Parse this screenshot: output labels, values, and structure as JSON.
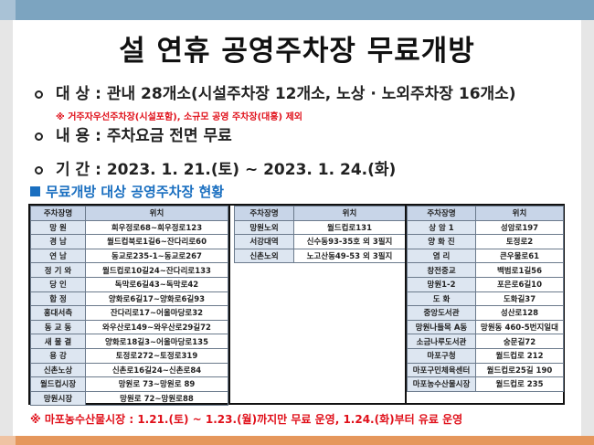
{
  "title": "설 연휴 공영주차장 무료개방",
  "bullets": [
    "대 상 : 관내 28개소(시설주차장 12개소, 노상 · 노외주차장 16개소)",
    "내 용 : 주차요금 전면 무료",
    "기 간 : 2023. 1. 21.(토) ~ 2023. 1. 24.(화)"
  ],
  "note": "※ 거주자우선주차장(시설포함), 소규모 공영 주차장(대흥) 제외",
  "section_title": "무료개방 대상 공영주차장 현황",
  "headers": [
    "주차장명",
    "위치"
  ],
  "tables": [
    [
      [
        "망 원",
        "희우정로68~희우정로123"
      ],
      [
        "경 남",
        "월드컵북로1길6~잔다리로60"
      ],
      [
        "연 남",
        "동교로235-1~동교로267"
      ],
      [
        "정 기 와",
        "월드컵로10길24~잔다리로133"
      ],
      [
        "당 인",
        "독막로6길43~독막로42"
      ],
      [
        "합 정",
        "양화로6길17~양화로6길93"
      ],
      [
        "홍대서측",
        "잔다리로17~어울마당로32"
      ],
      [
        "동 교 동",
        "와우산로149~와우산로29길72"
      ],
      [
        "새 물 결",
        "양화로18길3~어울마당로135"
      ],
      [
        "용 강",
        "토정로272~토정로319"
      ],
      [
        "신촌노상",
        "신촌로16길24~신촌로84"
      ],
      [
        "월드컵시장",
        "망원로 73~망원로 89"
      ],
      [
        "망원시장",
        "망원로 72~망원로88"
      ]
    ],
    [
      [
        "망원노외",
        "월드컵로131"
      ],
      [
        "서강대역",
        "신수동93-35호 외 3필지"
      ],
      [
        "신촌노외",
        "노고산동49-53 외 3필지"
      ]
    ],
    [
      [
        "상 암 1",
        "성암로197"
      ],
      [
        "양 화 진",
        "토정로2"
      ],
      [
        "염 리",
        "큰우물로61"
      ],
      [
        "창전중교",
        "백범로1길56"
      ],
      [
        "망원1-2",
        "포은로6길10"
      ],
      [
        "도 화",
        "도화길37"
      ],
      [
        "중앙도서관",
        "성산로128"
      ],
      [
        "망원나들목 A동",
        "망원동 460-5번지일대"
      ],
      [
        "소금나루도서관",
        "숭문길72"
      ],
      [
        "마포구청",
        "월드컵로 212"
      ],
      [
        "마포구민체육센터",
        "월드컵로25길 190"
      ],
      [
        "마포농수산물시장",
        "월드컵로 235"
      ]
    ]
  ],
  "footnote": "※ 마포농수산물시장 : 1.21.(토) ~ 1.23.(월)까지만 무료 운영, 1.24.(화)부터 유료 운영",
  "colors": {
    "accent": "#1a6fc0",
    "warning": "#e0101a",
    "top_band": "#7ca4c0",
    "bottom_band": "#e5975c"
  }
}
